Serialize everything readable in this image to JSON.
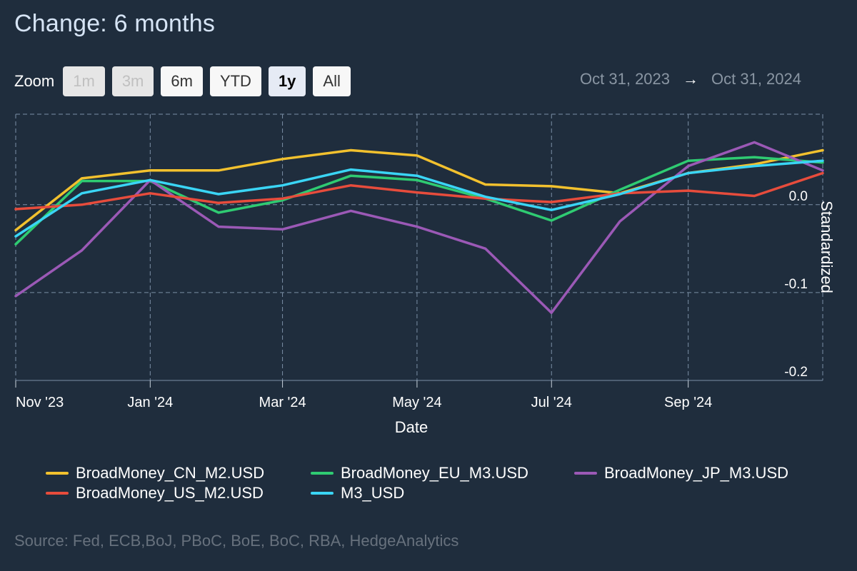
{
  "title": "Change: 6 months",
  "zoom": {
    "label": "Zoom",
    "buttons": [
      {
        "label": "1m",
        "state": "disabled"
      },
      {
        "label": "3m",
        "state": "disabled"
      },
      {
        "label": "6m",
        "state": "normal"
      },
      {
        "label": "YTD",
        "state": "normal"
      },
      {
        "label": "1y",
        "state": "active"
      },
      {
        "label": "All",
        "state": "normal"
      }
    ]
  },
  "range": {
    "from": "Oct 31, 2023",
    "arrow": "→",
    "to": "Oct 31, 2024"
  },
  "source": "Source: Fed, ECB,BoJ, PBoC, BoE, BoC, RBA, HedgeAnalytics",
  "chart_data": {
    "type": "line",
    "xlabel": "Date",
    "ylabel": "Standardized",
    "x": [
      "2023-11-01",
      "2023-12-01",
      "2024-01-01",
      "2024-02-01",
      "2024-03-01",
      "2024-04-01",
      "2024-05-01",
      "2024-06-01",
      "2024-07-01",
      "2024-08-01",
      "2024-09-01",
      "2024-10-01",
      "2024-11-01"
    ],
    "x_ticks": [
      {
        "date": "2023-11-01",
        "label": "Nov '23"
      },
      {
        "date": "2024-01-01",
        "label": "Jan '24"
      },
      {
        "date": "2024-03-01",
        "label": "Mar '24"
      },
      {
        "date": "2024-05-01",
        "label": "May '24"
      },
      {
        "date": "2024-07-01",
        "label": "Jul '24"
      },
      {
        "date": "2024-09-01",
        "label": "Sep '24"
      }
    ],
    "y_ticks": [
      {
        "value": 0.0,
        "label": "0.0"
      },
      {
        "value": -0.1,
        "label": "-0.1"
      },
      {
        "value": -0.2,
        "label": "-0.2"
      }
    ],
    "ylim": [
      -0.2,
      0.103
    ],
    "grid": true,
    "legend_position": "bottom",
    "series": [
      {
        "name": "BroadMoney_CN_M2.USD",
        "color": "#f2c12e",
        "values": [
          -0.029,
          0.03,
          0.039,
          0.039,
          0.052,
          0.062,
          0.056,
          0.023,
          0.021,
          0.013,
          0.036,
          0.046,
          0.062
        ]
      },
      {
        "name": "BroadMoney_EU_M3.USD",
        "color": "#2fcb72",
        "values": [
          -0.045,
          0.027,
          0.027,
          -0.009,
          0.005,
          0.033,
          0.028,
          0.007,
          -0.018,
          0.017,
          0.05,
          0.054,
          0.048
        ]
      },
      {
        "name": "BroadMoney_JP_M3.USD",
        "color": "#9b59b6",
        "values": [
          -0.104,
          -0.052,
          0.028,
          -0.025,
          -0.028,
          -0.007,
          -0.025,
          -0.05,
          -0.123,
          -0.019,
          0.044,
          0.071,
          0.039
        ]
      },
      {
        "name": "BroadMoney_US_M2.USD",
        "color": "#e74c3c",
        "values": [
          -0.005,
          0.0,
          0.013,
          0.002,
          0.007,
          0.022,
          0.014,
          0.007,
          0.003,
          0.013,
          0.016,
          0.01,
          0.036
        ]
      },
      {
        "name": "M3_USD",
        "color": "#3ad5f5",
        "values": [
          -0.036,
          0.013,
          0.028,
          0.012,
          0.022,
          0.04,
          0.033,
          0.009,
          -0.006,
          0.012,
          0.036,
          0.044,
          0.05
        ]
      }
    ]
  }
}
